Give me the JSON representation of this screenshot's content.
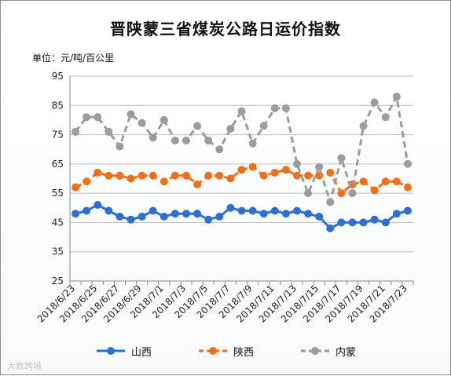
{
  "title": "晋陕蒙三省煤炭公路日运价指数",
  "unit": "单位：元/吨/百公里",
  "watermark": "大数跨境",
  "chart_data": {
    "type": "line",
    "x": [
      "2018/6/23",
      "2018/6/24",
      "2018/6/25",
      "2018/6/26",
      "2018/6/27",
      "2018/6/28",
      "2018/6/29",
      "2018/6/30",
      "2018/7/1",
      "2018/7/2",
      "2018/7/3",
      "2018/7/4",
      "2018/7/5",
      "2018/7/6",
      "2018/7/7",
      "2018/7/8",
      "2018/7/9",
      "2018/7/10",
      "2018/7/11",
      "2018/7/12",
      "2018/7/13",
      "2018/7/14",
      "2018/7/15",
      "2018/7/16",
      "2018/7/17",
      "2018/7/18",
      "2018/7/19",
      "2018/7/20",
      "2018/7/21",
      "2018/7/22",
      "2018/7/23"
    ],
    "xtick_labels": [
      "2018/6/23",
      "2018/6/25",
      "2018/6/27",
      "2018/6/29",
      "2018/7/1",
      "2018/7/3",
      "2018/7/5",
      "2018/7/7",
      "2018/7/9",
      "2018/7/11",
      "2018/7/13",
      "2018/7/15",
      "2018/7/17",
      "2018/7/19",
      "2018/7/21",
      "2018/7/23"
    ],
    "ylim": [
      25,
      95
    ],
    "yticks": [
      25,
      35,
      45,
      55,
      65,
      75,
      85,
      95
    ],
    "grid": true,
    "legend_position": "bottom",
    "series": [
      {
        "name": "山西",
        "color": "#2e6fd3",
        "dash": "solid",
        "values": [
          48,
          49,
          51,
          49,
          47,
          46,
          47,
          49,
          47,
          48,
          48,
          48,
          46,
          47,
          50,
          49,
          49,
          48,
          49,
          48,
          49,
          48,
          47,
          43,
          45,
          45,
          45,
          46,
          45,
          48,
          49
        ]
      },
      {
        "name": "陕西",
        "color": "#f0701a",
        "dash": "dashed",
        "values": [
          57,
          59,
          62,
          61,
          61,
          60,
          61,
          61,
          59,
          61,
          61,
          58,
          61,
          61,
          60,
          63,
          64,
          61,
          62,
          63,
          61,
          61,
          61,
          62,
          55,
          58,
          59,
          56,
          59,
          59,
          57
        ]
      },
      {
        "name": "内蒙",
        "color": "#9c9c9c",
        "dash": "dashed",
        "values": [
          76,
          81,
          81,
          76,
          71,
          82,
          79,
          74,
          80,
          73,
          73,
          78,
          73,
          70,
          77,
          83,
          72,
          78,
          84,
          84,
          65,
          55,
          64,
          52,
          67,
          55,
          78,
          86,
          81,
          88,
          65
        ]
      }
    ]
  }
}
